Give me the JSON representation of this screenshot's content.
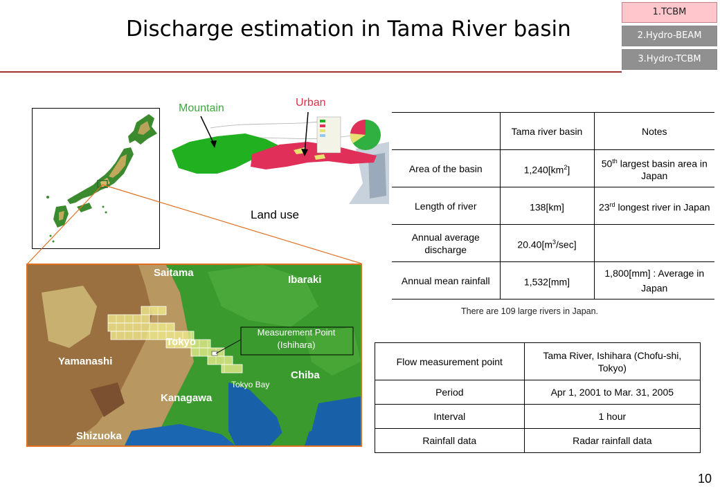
{
  "slide": {
    "title": "Discharge estimation in Tama River basin",
    "page_number": "10"
  },
  "nav": {
    "items": [
      "1.TCBM",
      "2.Hydro-BEAM",
      "3.Hydro-TCBM"
    ],
    "active_index": 0
  },
  "landuse": {
    "mountain_label": "Mountain",
    "urban_label": "Urban",
    "caption": "Land use"
  },
  "regional_map": {
    "places": [
      "Saitama",
      "Ibaraki",
      "Tokyo",
      "Yamanashi",
      "Chiba",
      "Kanagawa",
      "Shizuoka",
      "Tokyo Bay"
    ],
    "measurement_label_line1": "Measurement Point",
    "measurement_label_line2": "(Ishihara)"
  },
  "basin_table": {
    "headers": [
      "",
      "Tama river basin",
      "Notes"
    ],
    "rows": [
      {
        "label": "Area of the basin",
        "value": "1,240[km",
        "value_sup": "2",
        "value_tail": "]",
        "note_pre": "50",
        "note_sup": "th",
        "note_post": " largest basin area in Japan"
      },
      {
        "label": "Length of river",
        "value": "138[km]",
        "value_sup": "",
        "value_tail": "",
        "note_pre": "23",
        "note_sup": "rd",
        "note_post": " longest river in Japan"
      },
      {
        "label": "Annual average discharge",
        "value": "20.40[m",
        "value_sup": "3",
        "value_tail": "/sec]",
        "note_pre": "",
        "note_sup": "",
        "note_post": ""
      },
      {
        "label": "Annual mean rainfall",
        "value": "1,532[mm]",
        "value_sup": "",
        "value_tail": "",
        "note_pre": "1,800[mm] : Average in Japan",
        "note_sup": "",
        "note_post": ""
      }
    ],
    "footnote": "There are 109 large rivers in Japan."
  },
  "flow_table": {
    "rows": [
      [
        "Flow measurement point",
        "Tama River, Ishihara (Chofu-shi, Tokyo)"
      ],
      [
        "Period",
        "Apr 1, 2001 to Mar. 31, 2005"
      ],
      [
        "Interval",
        "1 hour"
      ],
      [
        "Rainfall data",
        "Radar rainfall data"
      ]
    ]
  },
  "colors": {
    "mountain_label": "#3aaa3a",
    "urban_label": "#e0304a",
    "urban_area": "#e0305a",
    "forest_area": "#20b020",
    "title_rule": "#a03030",
    "nav_active": "#ffc6cc",
    "nav_inactive": "#909090"
  }
}
